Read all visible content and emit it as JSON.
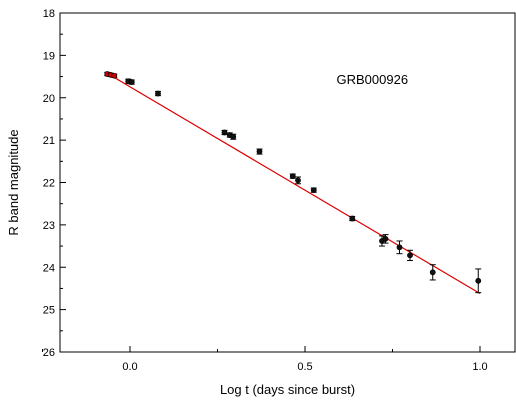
{
  "chart_data": {
    "type": "scatter",
    "annotation": "GRB000926",
    "xlabel": "Log t (days since burst)",
    "ylabel": "R band magnitude",
    "xlim": [
      -0.2,
      1.1
    ],
    "ylim": [
      26,
      18
    ],
    "y_inverted": true,
    "x_ticks": [
      0.0,
      0.5,
      1.0
    ],
    "x_tick_labels": [
      "0.0",
      "0.5",
      "1.0"
    ],
    "y_ticks": [
      18,
      19,
      20,
      21,
      22,
      23,
      24,
      25,
      26
    ],
    "y_tick_labels": [
      "18",
      "19",
      "20",
      "21",
      "22",
      "23",
      "24",
      "25",
      "26"
    ],
    "grid": false,
    "colors": {
      "points": "#111111",
      "fit": "#dd0000",
      "highlight": "#cc0000"
    },
    "points": [
      {
        "x": -0.065,
        "y": 19.44,
        "err": 0.04,
        "highlight": true
      },
      {
        "x": -0.055,
        "y": 19.46,
        "err": 0.04,
        "highlight": true
      },
      {
        "x": -0.045,
        "y": 19.48,
        "err": 0.04,
        "highlight": true
      },
      {
        "x": -0.005,
        "y": 19.61,
        "err": 0.05,
        "highlight": false
      },
      {
        "x": 0.005,
        "y": 19.63,
        "err": 0.05,
        "highlight": false
      },
      {
        "x": 0.08,
        "y": 19.9,
        "err": 0.05,
        "highlight": false
      },
      {
        "x": 0.27,
        "y": 20.82,
        "err": 0.05,
        "highlight": false
      },
      {
        "x": 0.285,
        "y": 20.88,
        "err": 0.05,
        "highlight": false
      },
      {
        "x": 0.295,
        "y": 20.92,
        "err": 0.06,
        "highlight": false
      },
      {
        "x": 0.37,
        "y": 21.27,
        "err": 0.06,
        "highlight": false
      },
      {
        "x": 0.465,
        "y": 21.85,
        "err": 0.05,
        "highlight": false
      },
      {
        "x": 0.48,
        "y": 21.95,
        "err": 0.08,
        "highlight": false
      },
      {
        "x": 0.525,
        "y": 22.18,
        "err": 0.05,
        "highlight": false
      },
      {
        "x": 0.635,
        "y": 22.85,
        "err": 0.05,
        "highlight": false
      },
      {
        "x": 0.72,
        "y": 23.38,
        "err": 0.12,
        "highlight": false
      },
      {
        "x": 0.73,
        "y": 23.33,
        "err": 0.1,
        "highlight": false
      },
      {
        "x": 0.77,
        "y": 23.53,
        "err": 0.15,
        "highlight": false
      },
      {
        "x": 0.8,
        "y": 23.72,
        "err": 0.12,
        "highlight": false
      },
      {
        "x": 0.865,
        "y": 24.12,
        "err": 0.18,
        "highlight": false
      },
      {
        "x": 0.995,
        "y": 24.32,
        "err": 0.28,
        "highlight": false
      }
    ],
    "fit_line": {
      "x": [
        -0.07,
        1.0
      ],
      "y": [
        19.4,
        24.62
      ]
    }
  }
}
